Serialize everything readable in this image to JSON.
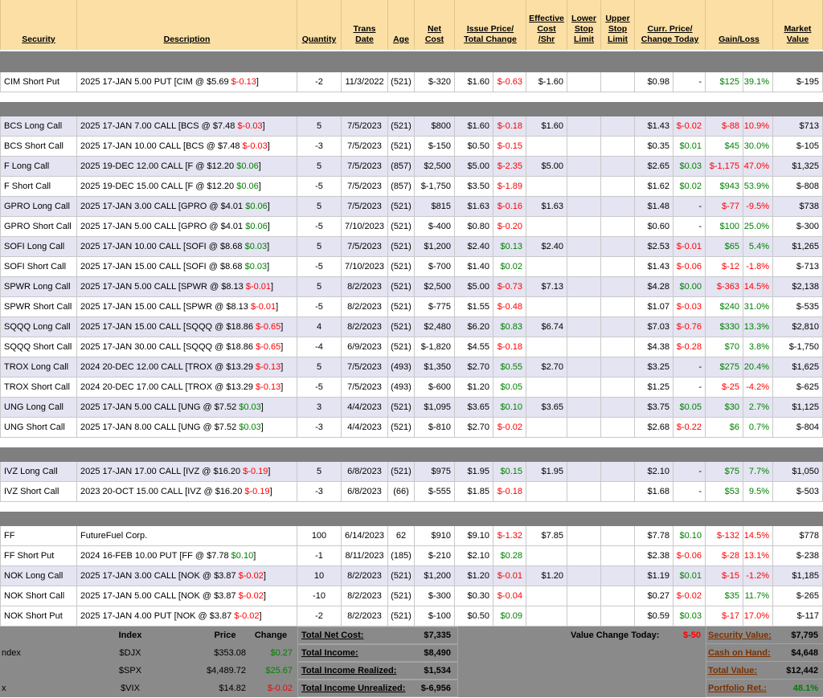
{
  "colors": {
    "positive": "#008000",
    "negative": "#ff0000",
    "header_bg": "#fbdfa4",
    "row_alt": "#e4e4f2",
    "band": "#7f7f7f",
    "footer_bg": "#8a8a8a",
    "summary_label": "#7b3000"
  },
  "header": {
    "security": "Security",
    "description": "Description",
    "quantity": "Quantity",
    "trans_date": [
      "Trans",
      "Date"
    ],
    "age": "Age",
    "net_cost": [
      "Net",
      "Cost"
    ],
    "issue_price_total_change": [
      "Issue Price/",
      "Total Change"
    ],
    "effective_cost": [
      "Effective",
      "Cost",
      "/Shr"
    ],
    "lower_stop": [
      "Lower",
      "Stop",
      "Limit"
    ],
    "upper_stop": [
      "Upper",
      "Stop",
      "Limit"
    ],
    "curr_price_change_today": [
      "Curr. Price/",
      "Change Today"
    ],
    "gain_loss": "Gain/Loss",
    "market_value": [
      "Market",
      "Value"
    ]
  },
  "groups": [
    [
      {
        "sec": "CIM Short Put",
        "pre": "2025 17-JAN 5.00 PUT [CIM @ $5.69 ",
        "chg": "$-0.13",
        "post": "]",
        "qty": "-2",
        "date": "11/3/2022",
        "age": "(521)",
        "net": "$-320",
        "issue": "$1.60",
        "tchg": "$-0.63",
        "eff": "$-1.60",
        "cprice": "$0.98",
        "ctoday": "-",
        "gain": "$125",
        "pct": "39.1%",
        "mval": "$-195",
        "shade": false
      }
    ],
    [
      {
        "sec": "BCS Long Call",
        "pre": "2025 17-JAN 7.00 CALL [BCS @ $7.48 ",
        "chg": "$-0.03",
        "post": "]",
        "qty": "5",
        "date": "7/5/2023",
        "age": "(521)",
        "net": "$800",
        "issue": "$1.60",
        "tchg": "$-0.18",
        "eff": "$1.60",
        "cprice": "$1.43",
        "ctoday": "$-0.02",
        "gain": "$-88",
        "pct": "-10.9%",
        "mval": "$713",
        "shade": true
      },
      {
        "sec": "BCS Short Call",
        "pre": "2025 17-JAN 10.00 CALL [BCS @ $7.48 ",
        "chg": "$-0.03",
        "post": "]",
        "qty": "-3",
        "date": "7/5/2023",
        "age": "(521)",
        "net": "$-150",
        "issue": "$0.50",
        "tchg": "$-0.15",
        "eff": "",
        "cprice": "$0.35",
        "ctoday": "$0.01",
        "gain": "$45",
        "pct": "30.0%",
        "mval": "$-105",
        "shade": false
      },
      {
        "sec": "F Long Call",
        "pre": "2025 19-DEC 12.00 CALL [F @ $12.20 ",
        "chg": "$0.06",
        "post": "]",
        "qty": "5",
        "date": "7/5/2023",
        "age": "(857)",
        "net": "$2,500",
        "issue": "$5.00",
        "tchg": "$-2.35",
        "eff": "$5.00",
        "cprice": "$2.65",
        "ctoday": "$0.03",
        "gain": "$-1,175",
        "pct": "-47.0%",
        "mval": "$1,325",
        "shade": true
      },
      {
        "sec": "F Short Call",
        "pre": "2025 19-DEC 15.00 CALL [F @ $12.20 ",
        "chg": "$0.06",
        "post": "]",
        "qty": "-5",
        "date": "7/5/2023",
        "age": "(857)",
        "net": "$-1,750",
        "issue": "$3.50",
        "tchg": "$-1.89",
        "eff": "",
        "cprice": "$1.62",
        "ctoday": "$0.02",
        "gain": "$943",
        "pct": "53.9%",
        "mval": "$-808",
        "shade": false
      },
      {
        "sec": "GPRO Long Call",
        "pre": "2025 17-JAN 3.00 CALL [GPRO @ $4.01 ",
        "chg": "$0.06",
        "post": "]",
        "qty": "5",
        "date": "7/5/2023",
        "age": "(521)",
        "net": "$815",
        "issue": "$1.63",
        "tchg": "$-0.16",
        "eff": "$1.63",
        "cprice": "$1.48",
        "ctoday": "-",
        "gain": "$-77",
        "pct": "-9.5%",
        "mval": "$738",
        "shade": true
      },
      {
        "sec": "GPRO Short Call",
        "pre": "2025 17-JAN 5.00 CALL [GPRO @ $4.01 ",
        "chg": "$0.06",
        "post": "]",
        "qty": "-5",
        "date": "7/10/2023",
        "age": "(521)",
        "net": "$-400",
        "issue": "$0.80",
        "tchg": "$-0.20",
        "eff": "",
        "cprice": "$0.60",
        "ctoday": "-",
        "gain": "$100",
        "pct": "25.0%",
        "mval": "$-300",
        "shade": false
      },
      {
        "sec": "SOFI Long Call",
        "pre": "2025 17-JAN 10.00 CALL [SOFI @ $8.68 ",
        "chg": "$0.03",
        "post": "]",
        "qty": "5",
        "date": "7/5/2023",
        "age": "(521)",
        "net": "$1,200",
        "issue": "$2.40",
        "tchg": "$0.13",
        "eff": "$2.40",
        "cprice": "$2.53",
        "ctoday": "$-0.01",
        "gain": "$65",
        "pct": "5.4%",
        "mval": "$1,265",
        "shade": true
      },
      {
        "sec": "SOFI Short Call",
        "pre": "2025 17-JAN 15.00 CALL [SOFI @ $8.68 ",
        "chg": "$0.03",
        "post": "]",
        "qty": "-5",
        "date": "7/10/2023",
        "age": "(521)",
        "net": "$-700",
        "issue": "$1.40",
        "tchg": "$0.02",
        "eff": "",
        "cprice": "$1.43",
        "ctoday": "$-0.06",
        "gain": "$-12",
        "pct": "-1.8%",
        "mval": "$-713",
        "shade": false
      },
      {
        "sec": "SPWR Long Call",
        "pre": "2025 17-JAN 5.00 CALL [SPWR @ $8.13 ",
        "chg": "$-0.01",
        "post": "]",
        "qty": "5",
        "date": "8/2/2023",
        "age": "(521)",
        "net": "$2,500",
        "issue": "$5.00",
        "tchg": "$-0.73",
        "eff": "$7.13",
        "cprice": "$4.28",
        "ctoday": "$0.00",
        "gain": "$-363",
        "pct": "-14.5%",
        "mval": "$2,138",
        "shade": true
      },
      {
        "sec": "SPWR Short Call",
        "pre": "2025 17-JAN 15.00 CALL [SPWR @ $8.13 ",
        "chg": "$-0.01",
        "post": "]",
        "qty": "-5",
        "date": "8/2/2023",
        "age": "(521)",
        "net": "$-775",
        "issue": "$1.55",
        "tchg": "$-0.48",
        "eff": "",
        "cprice": "$1.07",
        "ctoday": "$-0.03",
        "gain": "$240",
        "pct": "31.0%",
        "mval": "$-535",
        "shade": false
      },
      {
        "sec": "SQQQ Long Call",
        "pre": "2025 17-JAN 15.00 CALL [SQQQ @ $18.86 ",
        "chg": "$-0.65",
        "post": "]",
        "qty": "4",
        "date": "8/2/2023",
        "age": "(521)",
        "net": "$2,480",
        "issue": "$6.20",
        "tchg": "$0.83",
        "eff": "$6.74",
        "cprice": "$7.03",
        "ctoday": "$-0.76",
        "gain": "$330",
        "pct": "13.3%",
        "mval": "$2,810",
        "shade": true
      },
      {
        "sec": "SQQQ Short Call",
        "pre": "2025 17-JAN 30.00 CALL [SQQQ @ $18.86 ",
        "chg": "$-0.65",
        "post": "]",
        "qty": "-4",
        "date": "6/9/2023",
        "age": "(521)",
        "net": "$-1,820",
        "issue": "$4.55",
        "tchg": "$-0.18",
        "eff": "",
        "cprice": "$4.38",
        "ctoday": "$-0.28",
        "gain": "$70",
        "pct": "3.8%",
        "mval": "$-1,750",
        "shade": false
      },
      {
        "sec": "TROX Long Call",
        "pre": "2024 20-DEC 12.00 CALL [TROX @ $13.29 ",
        "chg": "$-0.13",
        "post": "]",
        "qty": "5",
        "date": "7/5/2023",
        "age": "(493)",
        "net": "$1,350",
        "issue": "$2.70",
        "tchg": "$0.55",
        "eff": "$2.70",
        "cprice": "$3.25",
        "ctoday": "-",
        "gain": "$275",
        "pct": "20.4%",
        "mval": "$1,625",
        "shade": true
      },
      {
        "sec": "TROX Short Call",
        "pre": "2024 20-DEC 17.00 CALL [TROX @ $13.29 ",
        "chg": "$-0.13",
        "post": "]",
        "qty": "-5",
        "date": "7/5/2023",
        "age": "(493)",
        "net": "$-600",
        "issue": "$1.20",
        "tchg": "$0.05",
        "eff": "",
        "cprice": "$1.25",
        "ctoday": "-",
        "gain": "$-25",
        "pct": "-4.2%",
        "mval": "$-625",
        "shade": false
      },
      {
        "sec": "UNG Long Call",
        "pre": "2025 17-JAN 5.00 CALL [UNG @ $7.52 ",
        "chg": "$0.03",
        "post": "]",
        "qty": "3",
        "date": "4/4/2023",
        "age": "(521)",
        "net": "$1,095",
        "issue": "$3.65",
        "tchg": "$0.10",
        "eff": "$3.65",
        "cprice": "$3.75",
        "ctoday": "$0.05",
        "gain": "$30",
        "pct": "2.7%",
        "mval": "$1,125",
        "shade": true
      },
      {
        "sec": "UNG Short Call",
        "pre": "2025 17-JAN 8.00 CALL [UNG @ $7.52 ",
        "chg": "$0.03",
        "post": "]",
        "qty": "-3",
        "date": "4/4/2023",
        "age": "(521)",
        "net": "$-810",
        "issue": "$2.70",
        "tchg": "$-0.02",
        "eff": "",
        "cprice": "$2.68",
        "ctoday": "$-0.22",
        "gain": "$6",
        "pct": "0.7%",
        "mval": "$-804",
        "shade": false
      }
    ],
    [
      {
        "sec": "IVZ Long Call",
        "pre": "2025 17-JAN 17.00 CALL [IVZ @ $16.20 ",
        "chg": "$-0.19",
        "post": "]",
        "qty": "5",
        "date": "6/8/2023",
        "age": "(521)",
        "net": "$975",
        "issue": "$1.95",
        "tchg": "$0.15",
        "eff": "$1.95",
        "cprice": "$2.10",
        "ctoday": "-",
        "gain": "$75",
        "pct": "7.7%",
        "mval": "$1,050",
        "shade": true
      },
      {
        "sec": "IVZ Short Call",
        "pre": "2023 20-OCT 15.00 CALL [IVZ @ $16.20 ",
        "chg": "$-0.19",
        "post": "]",
        "qty": "-3",
        "date": "6/8/2023",
        "age": "(66)",
        "net": "$-555",
        "issue": "$1.85",
        "tchg": "$-0.18",
        "eff": "",
        "cprice": "$1.68",
        "ctoday": "-",
        "gain": "$53",
        "pct": "9.5%",
        "mval": "$-503",
        "shade": false
      }
    ],
    [
      {
        "sec": "FF",
        "pre": "FutureFuel Corp.",
        "chg": "",
        "post": "",
        "qty": "100",
        "date": "6/14/2023",
        "age": "62",
        "net": "$910",
        "issue": "$9.10",
        "tchg": "$-1.32",
        "eff": "$7.85",
        "cprice": "$7.78",
        "ctoday": "$0.10",
        "gain": "$-132",
        "pct": "-14.5%",
        "mval": "$778",
        "shade": false
      },
      {
        "sec": "FF Short Put",
        "pre": "2024 16-FEB 10.00 PUT [FF @ $7.78 ",
        "chg": "$0.10",
        "post": "]",
        "qty": "-1",
        "date": "8/11/2023",
        "age": "(185)",
        "net": "$-210",
        "issue": "$2.10",
        "tchg": "$0.28",
        "eff": "",
        "cprice": "$2.38",
        "ctoday": "$-0.06",
        "gain": "$-28",
        "pct": "-13.1%",
        "mval": "$-238",
        "shade": false
      },
      {
        "sec": "NOK Long Call",
        "pre": "2025 17-JAN 3.00 CALL [NOK @ $3.87 ",
        "chg": "$-0.02",
        "post": "]",
        "qty": "10",
        "date": "8/2/2023",
        "age": "(521)",
        "net": "$1,200",
        "issue": "$1.20",
        "tchg": "$-0.01",
        "eff": "$1.20",
        "cprice": "$1.19",
        "ctoday": "$0.01",
        "gain": "$-15",
        "pct": "-1.2%",
        "mval": "$1,185",
        "shade": true
      },
      {
        "sec": "NOK Short Call",
        "pre": "2025 17-JAN 5.00 CALL [NOK @ $3.87 ",
        "chg": "$-0.02",
        "post": "]",
        "qty": "-10",
        "date": "8/2/2023",
        "age": "(521)",
        "net": "$-300",
        "issue": "$0.30",
        "tchg": "$-0.04",
        "eff": "",
        "cprice": "$0.27",
        "ctoday": "$-0.02",
        "gain": "$35",
        "pct": "11.7%",
        "mval": "$-265",
        "shade": false
      },
      {
        "sec": "NOK Short Put",
        "pre": "2025 17-JAN 4.00 PUT [NOK @ $3.87 ",
        "chg": "$-0.02",
        "post": "]",
        "qty": "-2",
        "date": "8/2/2023",
        "age": "(521)",
        "net": "$-100",
        "issue": "$0.50",
        "tchg": "$0.09",
        "eff": "",
        "cprice": "$0.59",
        "ctoday": "$0.03",
        "gain": "$-17",
        "pct": "-17.0%",
        "mval": "$-117",
        "shade": false
      }
    ]
  ],
  "footer": {
    "index_table": {
      "headers": {
        "index": "Index",
        "price": "Price",
        "change": "Change"
      },
      "rows": [
        {
          "partial": "ndex",
          "symbol": "$DJX",
          "price": "$353.08",
          "change": "$0.27"
        },
        {
          "partial": "",
          "symbol": "$SPX",
          "price": "$4,489.72",
          "change": "$25.67"
        },
        {
          "partial": "x",
          "symbol": "$VIX",
          "price": "$14.82",
          "change": "$-0.02"
        }
      ]
    },
    "totals": [
      {
        "label": "Total Net Cost:",
        "value": "$7,335"
      },
      {
        "label": "Total Income:",
        "value": "$8,490"
      },
      {
        "label": "Total Income Realized:",
        "value": "$1,534"
      },
      {
        "label": "Total Income Unrealized:",
        "value": "$-6,956"
      }
    ],
    "value_change_today": {
      "label": "Value Change Today:",
      "value": "$-50"
    },
    "summary": [
      {
        "label": "Security Value:",
        "value": "$7,795"
      },
      {
        "label": "Cash on Hand:",
        "value": "$4,648"
      },
      {
        "label": "Total Value:",
        "value": "$12,442"
      },
      {
        "label": "Portfolio Ret.:",
        "value": "48.1%"
      }
    ]
  }
}
